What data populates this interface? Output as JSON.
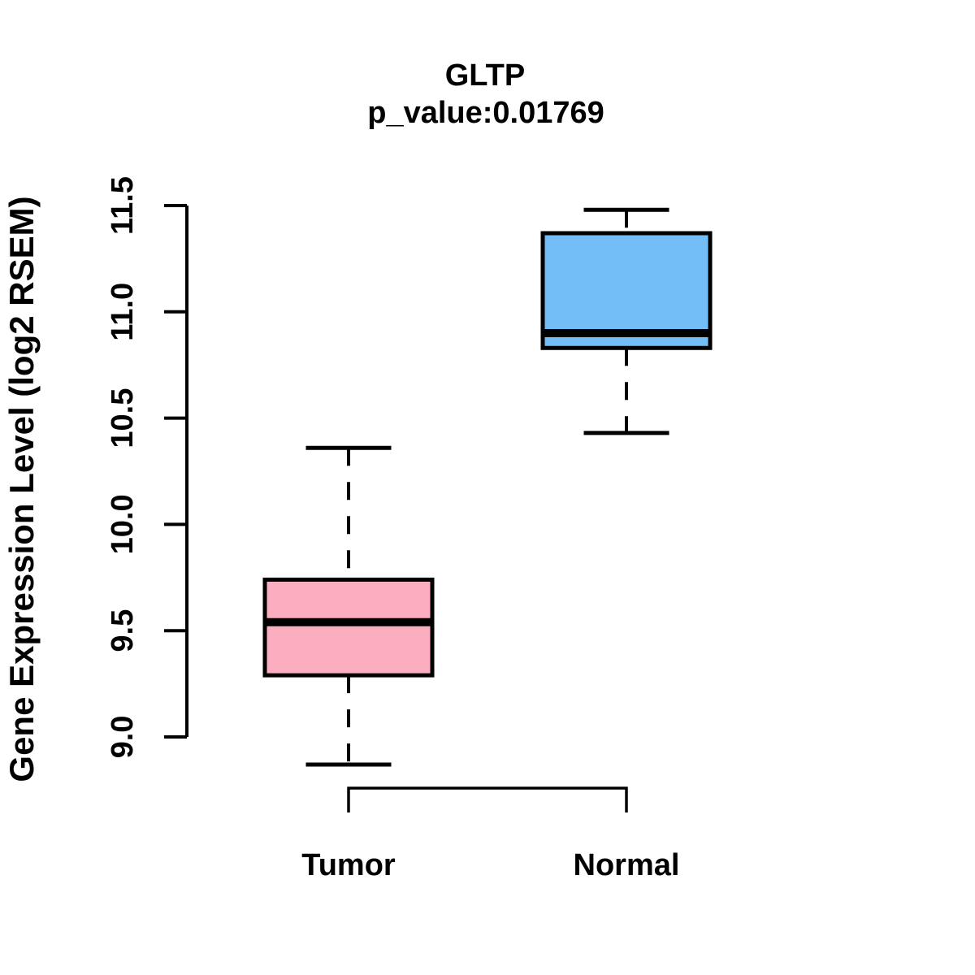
{
  "title": "GLTP",
  "subtitle": "p_value:0.01769",
  "y_axis": {
    "label": "Gene Expression Level (log2 RSEM)",
    "tick_labels": [
      "9.0",
      "9.5",
      "10.0",
      "10.5",
      "11.0",
      "11.5"
    ]
  },
  "x_axis": {
    "categories": [
      "Tumor",
      "Normal"
    ]
  },
  "chart_data": {
    "type": "boxplot",
    "title": "GLTP",
    "subtitle": "p_value:0.01769",
    "gene": "GLTP",
    "p_value": 0.01769,
    "ylabel": "Gene Expression Level (log2 RSEM)",
    "xlabel": "",
    "categories": [
      "Tumor",
      "Normal"
    ],
    "y_ticks": [
      9.0,
      9.5,
      10.0,
      10.5,
      11.0,
      11.5
    ],
    "ylim": [
      8.75,
      11.55
    ],
    "grid": false,
    "legend": "none",
    "orientation": "vertical",
    "series": [
      {
        "name": "Tumor",
        "fill_color": "#FCAEC1",
        "whisker_low": 8.87,
        "q1": 9.29,
        "median": 9.54,
        "q3": 9.74,
        "whisker_high": 10.36
      },
      {
        "name": "Normal",
        "fill_color": "#74BEF7",
        "whisker_low": 10.43,
        "q1": 10.83,
        "median": 10.9,
        "q3": 11.37,
        "whisker_high": 11.48
      }
    ]
  },
  "colors": {
    "stroke": "#000000",
    "tumor_box_fill": "#FCAEC1",
    "normal_box_fill": "#74BEF7",
    "background": "#FFFFFF",
    "text": "#000000"
  }
}
